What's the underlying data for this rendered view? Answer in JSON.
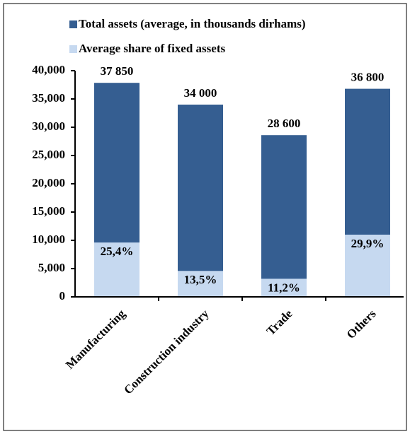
{
  "chart_data": {
    "type": "bar",
    "categories": [
      "Manufacturing",
      "Construction industry",
      "Trade",
      "Others"
    ],
    "series": [
      {
        "name": "Total assets (average, in thousands dirhams)",
        "color": "#355e91",
        "values": [
          37850,
          34000,
          28600,
          36800
        ],
        "value_labels": [
          "37 850",
          "34 000",
          "28 600",
          "36 800"
        ]
      },
      {
        "name": "Average share of fixed assets",
        "color": "#c6d9f0",
        "values": [
          9614,
          4590,
          3203,
          11003
        ],
        "share_labels": [
          "25,4%",
          "13,5%",
          "11,2%",
          "29,9%"
        ]
      }
    ],
    "ylim": [
      0,
      40000
    ],
    "yticks": [
      0,
      {
        "value": 5000,
        "label": "5,000"
      },
      {
        "value": 10000,
        "label": "10,000"
      },
      {
        "value": 15000,
        "label": "15,000"
      },
      {
        "value": 20000,
        "label": "20,000"
      },
      {
        "value": 25000,
        "label": "25,000"
      },
      {
        "value": 30000,
        "label": "30,000"
      },
      {
        "value": 35000,
        "label": "35,000"
      },
      {
        "value": 40000,
        "label": "40,000"
      }
    ],
    "overlap": true
  }
}
